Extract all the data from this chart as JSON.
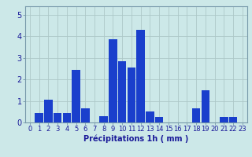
{
  "values": [
    0,
    0.45,
    1.05,
    0.45,
    0.45,
    2.45,
    0.65,
    0.0,
    0.3,
    3.85,
    2.85,
    2.55,
    4.3,
    0.5,
    0.25,
    0.0,
    0.0,
    0.0,
    0.65,
    1.5,
    0.0,
    0.25,
    0.25,
    0.0
  ],
  "bar_color": "#1a3fcc",
  "background_color": "#cce8e8",
  "grid_color": "#adc8c8",
  "xlabel": "Précipitations 1h ( mm )",
  "xlabel_fontsize": 7,
  "ylabel_ticks": [
    0,
    1,
    2,
    3,
    4,
    5
  ],
  "ylim": [
    0,
    5.4
  ],
  "xlim": [
    -0.5,
    23.5
  ],
  "tick_fontsize": 6,
  "bar_width": 0.9
}
